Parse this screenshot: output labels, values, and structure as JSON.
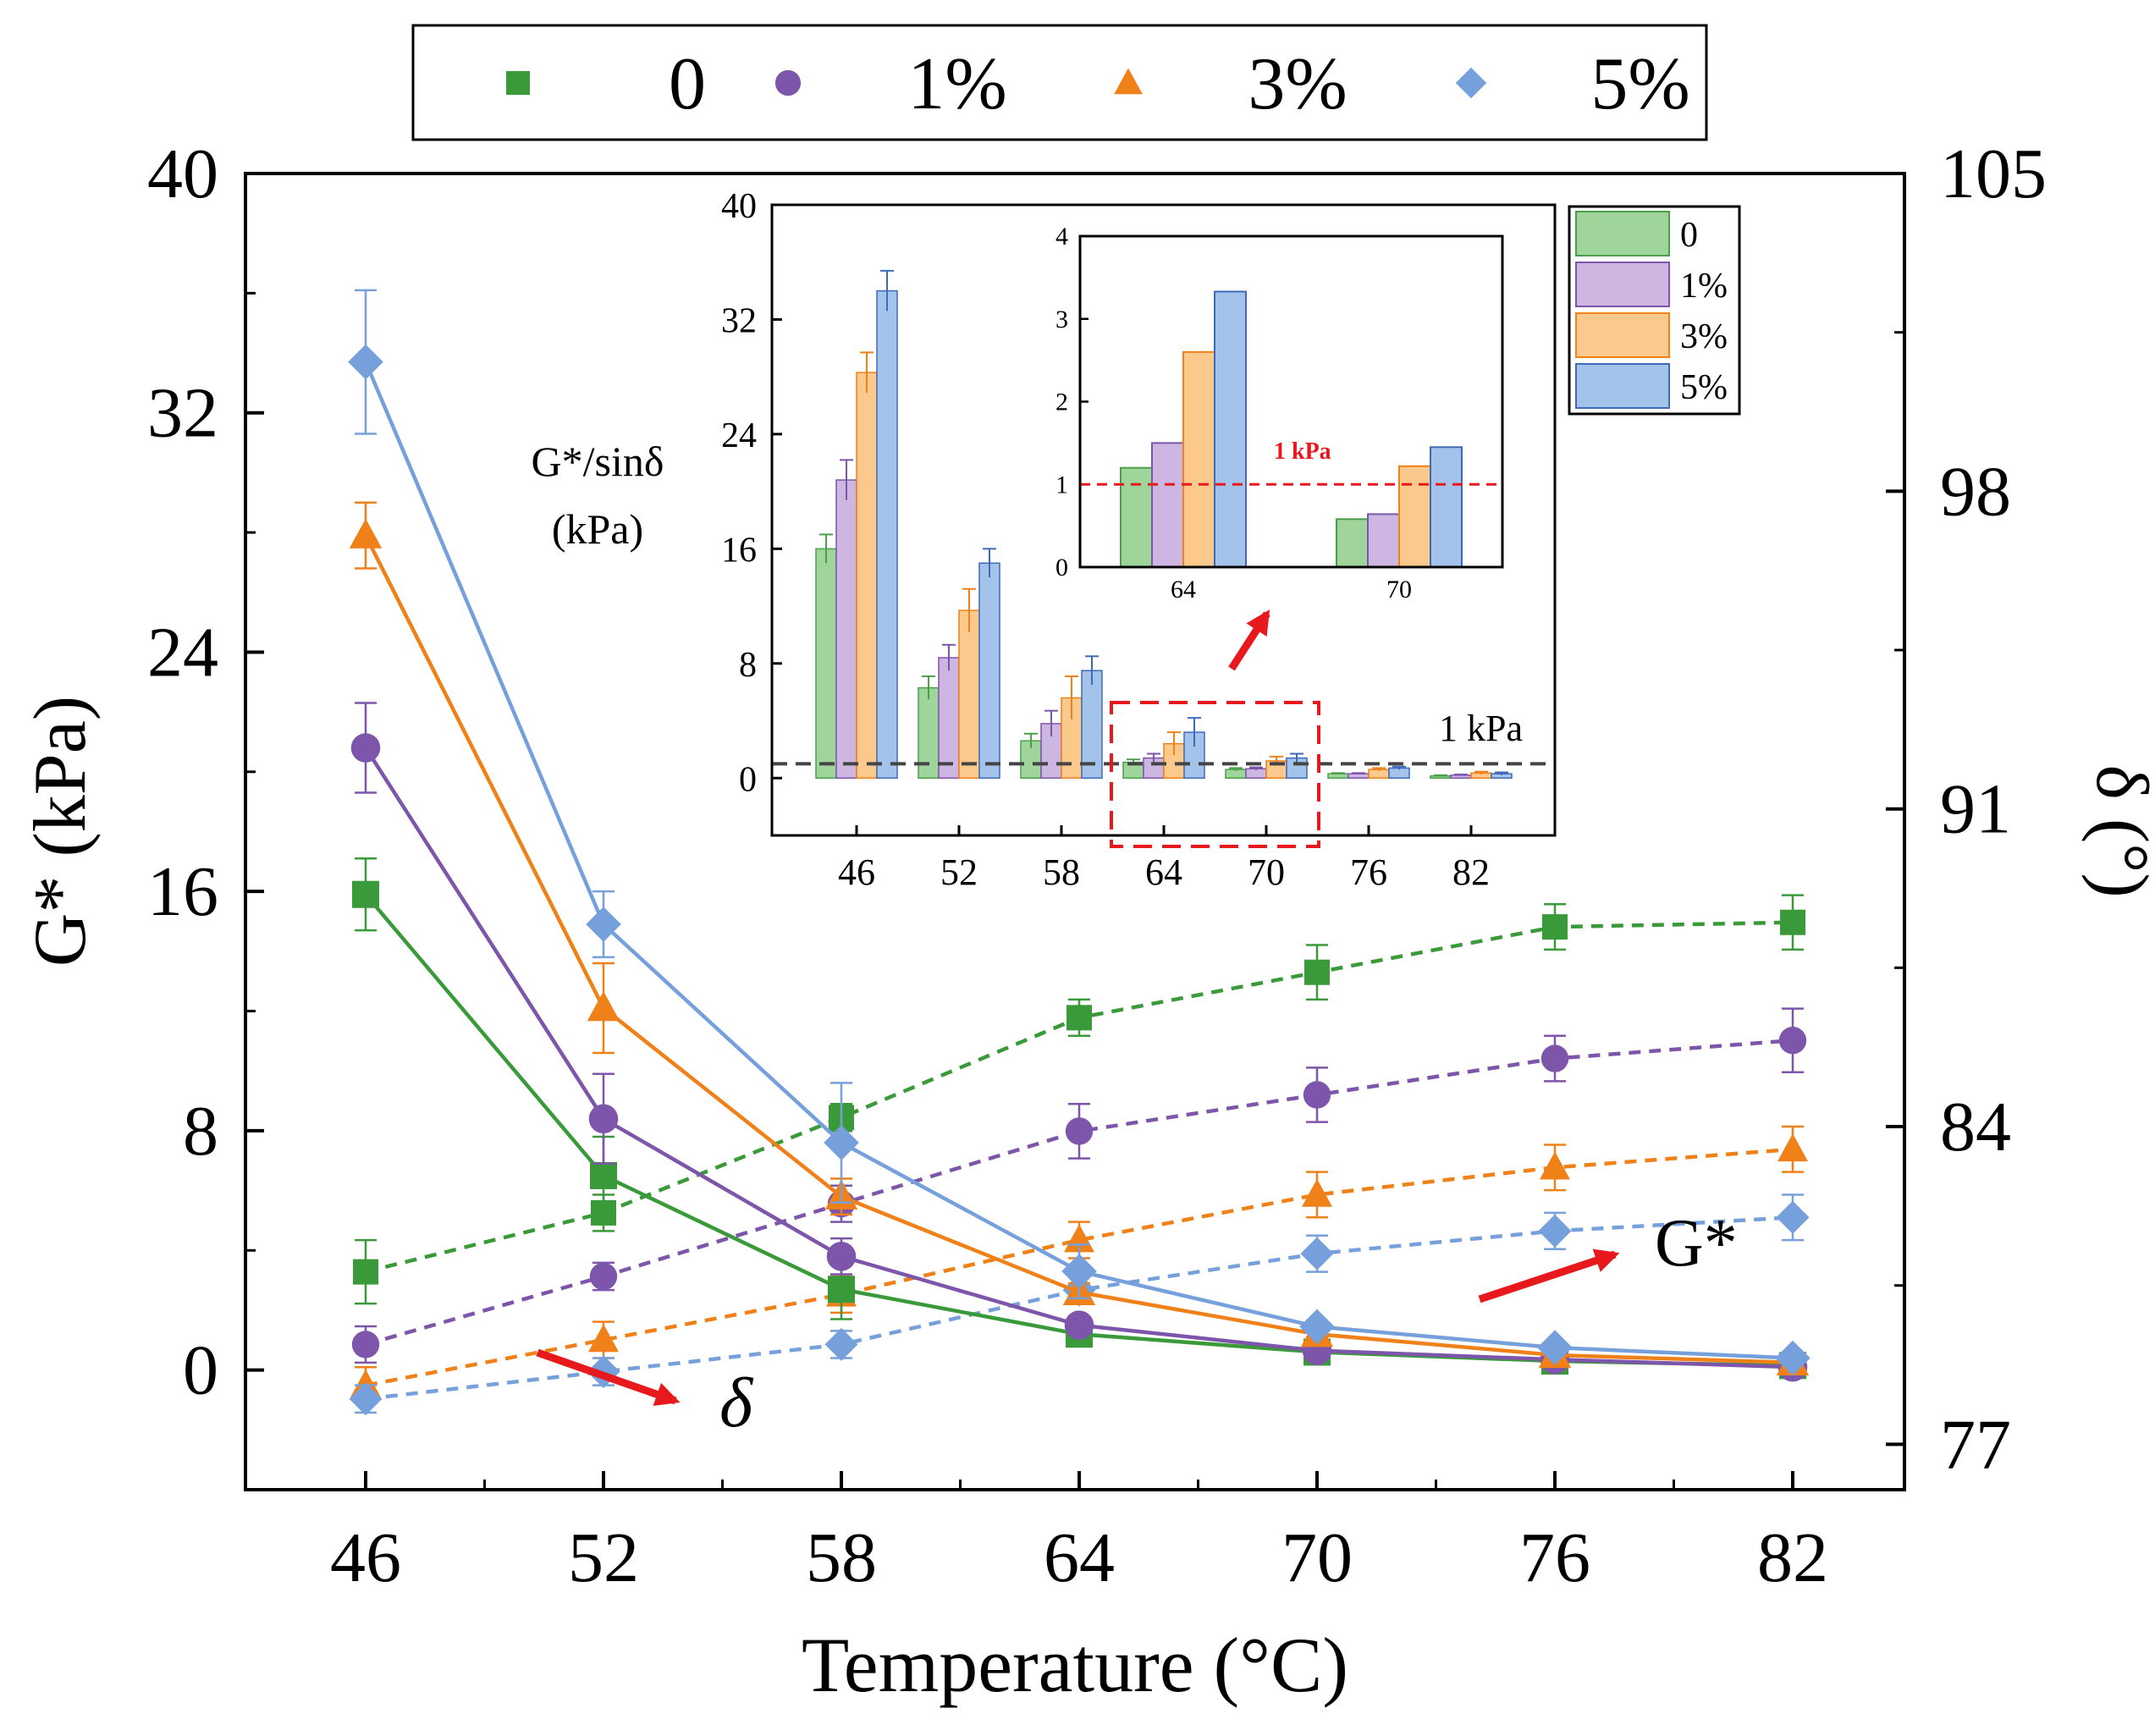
{
  "chart_data": [
    {
      "type": "line",
      "role": "main",
      "x": [
        46,
        52,
        58,
        64,
        70,
        76,
        82
      ],
      "xlabel": "Temperature (°C)",
      "ylabel_left": "G* (kPa)",
      "ylabel_right": "δ (°)",
      "xticks": [
        "46",
        "52",
        "58",
        "64",
        "70",
        "76",
        "82"
      ],
      "yticks_left": [
        "0",
        "8",
        "16",
        "24",
        "32",
        "40"
      ],
      "yticks_right": [
        "77",
        "84",
        "91",
        "98",
        "105"
      ],
      "ylim_left": [
        -4,
        40
      ],
      "ylim_right": [
        76,
        105
      ],
      "legend_position": "top",
      "annotations": {
        "g_label": "G*",
        "delta_label": "δ"
      },
      "gstar_series": [
        {
          "name": "0",
          "marker": "square",
          "color": "#3a9a3a",
          "values": [
            15.9,
            6.5,
            2.7,
            1.2,
            0.6,
            0.3,
            0.15
          ],
          "errors": [
            1.2,
            1.3,
            1.0,
            0.2,
            0.1,
            0.1,
            0.05
          ]
        },
        {
          "name": "1%",
          "marker": "circle",
          "color": "#7d55aa",
          "values": [
            20.8,
            8.4,
            3.8,
            1.5,
            0.65,
            0.35,
            0.1
          ],
          "errors": [
            1.5,
            1.5,
            0.6,
            0.2,
            0.1,
            0.1,
            0.05
          ]
        },
        {
          "name": "3%",
          "marker": "triangle",
          "color": "#f08018",
          "values": [
            27.9,
            12.1,
            5.8,
            2.6,
            1.2,
            0.5,
            0.25
          ],
          "errors": [
            1.1,
            1.5,
            0.6,
            0.3,
            0.1,
            0.1,
            0.05
          ]
        },
        {
          "name": "5%",
          "marker": "diamond",
          "color": "#76a0dc",
          "values": [
            33.7,
            14.9,
            7.6,
            3.3,
            1.45,
            0.75,
            0.4
          ],
          "errors": [
            2.4,
            1.1,
            2.0,
            0.9,
            0.2,
            0.1,
            0.05
          ]
        }
      ],
      "delta_series": [
        {
          "name": "0",
          "marker": "square",
          "color": "#3a9a3a",
          "values": [
            80.8,
            82.1,
            84.2,
            86.4,
            87.4,
            88.4,
            88.5
          ],
          "errors": [
            0.7,
            0.4,
            0.3,
            0.4,
            0.6,
            0.5,
            0.6
          ]
        },
        {
          "name": "1%",
          "marker": "circle",
          "color": "#7d55aa",
          "values": [
            79.2,
            80.7,
            82.3,
            83.9,
            84.7,
            85.5,
            85.9
          ],
          "errors": [
            0.4,
            0.3,
            0.4,
            0.6,
            0.6,
            0.5,
            0.7
          ]
        },
        {
          "name": "3%",
          "marker": "triangle",
          "color": "#f08018",
          "values": [
            78.3,
            79.3,
            80.3,
            81.5,
            82.5,
            83.1,
            83.5
          ],
          "errors": [
            0.4,
            0.4,
            0.4,
            0.4,
            0.5,
            0.5,
            0.5
          ]
        },
        {
          "name": "5%",
          "marker": "diamond",
          "color": "#76a0dc",
          "values": [
            78.0,
            78.6,
            79.2,
            80.4,
            81.2,
            81.7,
            82.0
          ],
          "errors": [
            0.3,
            0.3,
            0.3,
            0.3,
            0.4,
            0.4,
            0.5
          ]
        }
      ]
    },
    {
      "type": "bar",
      "role": "inset",
      "ylabel": "G*/sinδ (kPa)",
      "categories": [
        "46",
        "52",
        "58",
        "64",
        "70",
        "76",
        "82"
      ],
      "yticks": [
        "0",
        "8",
        "16",
        "24",
        "32",
        "40"
      ],
      "ylim": [
        -4,
        40
      ],
      "reference_line": {
        "value": 1,
        "label": "1 kPa"
      },
      "series": [
        {
          "name": "0",
          "color": "#9fd49a",
          "edge": "#4aa04a",
          "values": [
            16.0,
            6.3,
            2.6,
            1.1,
            0.6,
            0.3,
            0.15
          ],
          "errors": [
            1.0,
            0.8,
            0.5,
            0.2,
            0.1,
            0.05,
            0.05
          ]
        },
        {
          "name": "1%",
          "color": "#cdb6e2",
          "edge": "#7d55aa",
          "values": [
            20.8,
            8.4,
            3.8,
            1.4,
            0.65,
            0.3,
            0.2
          ],
          "errors": [
            1.4,
            0.9,
            0.9,
            0.3,
            0.1,
            0.05,
            0.05
          ]
        },
        {
          "name": "3%",
          "color": "#fbc98b",
          "edge": "#f08018",
          "values": [
            28.3,
            11.7,
            5.6,
            2.4,
            1.2,
            0.6,
            0.35
          ],
          "errors": [
            1.4,
            1.5,
            1.5,
            0.8,
            0.3,
            0.1,
            0.1
          ]
        },
        {
          "name": "5%",
          "color": "#a4c3ea",
          "edge": "#3e6ab8",
          "values": [
            34.0,
            15.0,
            7.5,
            3.2,
            1.4,
            0.7,
            0.3
          ],
          "errors": [
            1.4,
            1.0,
            1.0,
            1.0,
            0.3,
            0.1,
            0.1
          ]
        }
      ]
    },
    {
      "type": "bar",
      "role": "zoom-inset",
      "categories": [
        "64",
        "70"
      ],
      "yticks": [
        "0",
        "1",
        "2",
        "3",
        "4"
      ],
      "ylim": [
        0,
        4
      ],
      "reference_line": {
        "value": 1,
        "label": "1 kPa"
      },
      "series": [
        {
          "name": "0",
          "values": [
            1.2,
            0.58
          ]
        },
        {
          "name": "1%",
          "values": [
            1.5,
            0.64
          ]
        },
        {
          "name": "3%",
          "values": [
            2.6,
            1.22
          ]
        },
        {
          "name": "5%",
          "values": [
            3.33,
            1.45
          ]
        }
      ]
    }
  ],
  "legend": {
    "items": [
      "0",
      "1%",
      "3%",
      "5%"
    ]
  },
  "inset_legend": {
    "items": [
      "0",
      "1%",
      "3%",
      "5%"
    ]
  }
}
